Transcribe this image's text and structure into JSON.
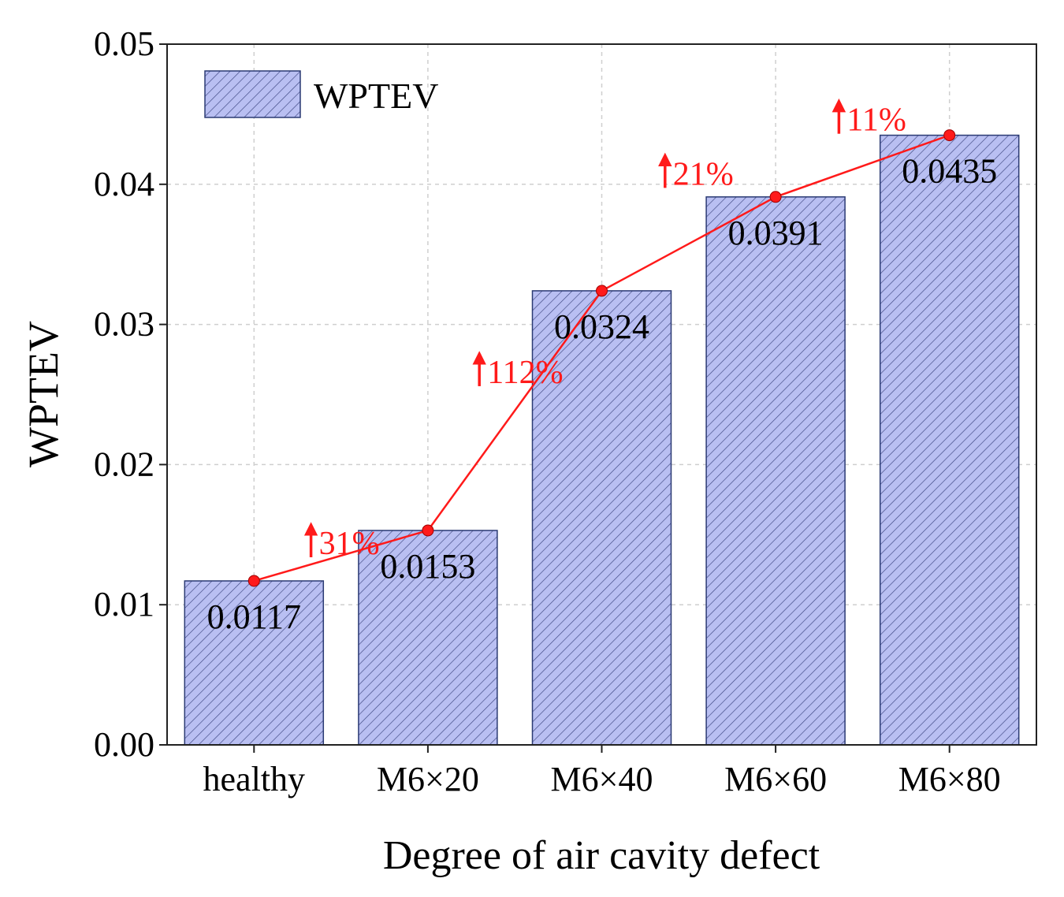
{
  "chart_data": {
    "type": "bar",
    "title": "",
    "xlabel": "Degree of air cavity defect",
    "ylabel": "WPTEV",
    "categories": [
      "healthy",
      "M6×20",
      "M6×40",
      "M6×60",
      "M6×80"
    ],
    "series": [
      {
        "name": "WPTEV",
        "values": [
          0.0117,
          0.0153,
          0.0324,
          0.0391,
          0.0435
        ],
        "value_labels": [
          "0.0117",
          "0.0153",
          "0.0324",
          "0.0391",
          "0.0435"
        ]
      }
    ],
    "trend_line": {
      "values": [
        0.0117,
        0.0153,
        0.0324,
        0.0391,
        0.0435
      ],
      "increase_labels": [
        "31%",
        "112%",
        "21%",
        "11%"
      ]
    },
    "ylim": [
      0,
      0.05
    ],
    "yticks": [
      0.0,
      0.01,
      0.02,
      0.03,
      0.04,
      0.05
    ],
    "ytick_labels": [
      "0.00",
      "0.01",
      "0.02",
      "0.03",
      "0.04",
      "0.05"
    ],
    "grid": true,
    "legend": {
      "position": "top-left",
      "entries": [
        "WPTEV"
      ]
    },
    "colors": {
      "bar_fill": "#b9bff2",
      "bar_hatch": "#3c4580",
      "trend": "#ff1a1a",
      "text": "#000000"
    }
  }
}
